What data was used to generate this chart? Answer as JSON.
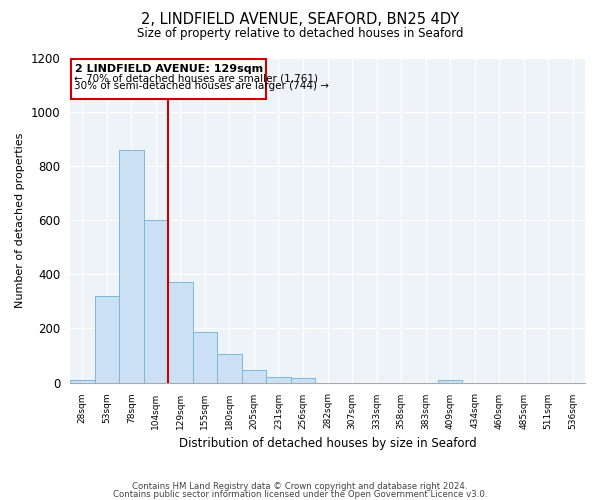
{
  "title_line1": "2, LINDFIELD AVENUE, SEAFORD, BN25 4DY",
  "title_line2": "Size of property relative to detached houses in Seaford",
  "xlabel": "Distribution of detached houses by size in Seaford",
  "ylabel": "Number of detached properties",
  "bar_labels": [
    "28sqm",
    "53sqm",
    "78sqm",
    "104sqm",
    "129sqm",
    "155sqm",
    "180sqm",
    "205sqm",
    "231sqm",
    "256sqm",
    "282sqm",
    "307sqm",
    "333sqm",
    "358sqm",
    "383sqm",
    "409sqm",
    "434sqm",
    "460sqm",
    "485sqm",
    "511sqm",
    "536sqm"
  ],
  "bar_heights": [
    10,
    320,
    860,
    600,
    370,
    185,
    105,
    47,
    20,
    18,
    0,
    0,
    0,
    0,
    0,
    10,
    0,
    0,
    0,
    0,
    0
  ],
  "bar_color": "#cce0f5",
  "bar_edge_color": "#7ab8d9",
  "vline_color": "#cc0000",
  "annotation_title": "2 LINDFIELD AVENUE: 129sqm",
  "annotation_line1": "← 70% of detached houses are smaller (1,761)",
  "annotation_line2": "30% of semi-detached houses are larger (744) →",
  "annotation_box_color": "#cc0000",
  "ylim": [
    0,
    1200
  ],
  "yticks": [
    0,
    200,
    400,
    600,
    800,
    1000,
    1200
  ],
  "footer_line1": "Contains HM Land Registry data © Crown copyright and database right 2024.",
  "footer_line2": "Contains public sector information licensed under the Open Government Licence v3.0."
}
